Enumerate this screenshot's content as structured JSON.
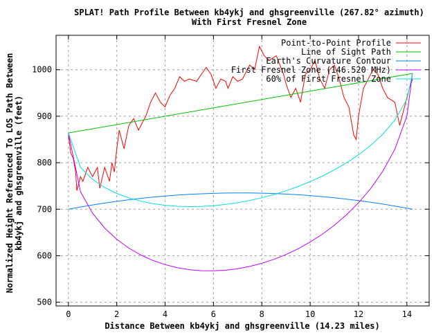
{
  "chart_data": {
    "type": "line",
    "title": "SPLAT! Path Profile Between kb4ykj and ghsgreenville (267.82° azimuth)",
    "subtitle": "With First Fresnel Zone",
    "xlabel": "Distance Between kb4ykj and ghsgreenville (14.23 miles)",
    "ylabel_lines": [
      "Normalized Height Referenced To LOS Path Between",
      "kb4ykj and ghsgreenville (feet)"
    ],
    "xlim": [
      -0.51,
      14.92
    ],
    "ylim": [
      492,
      1074
    ],
    "xticks": [
      0,
      2,
      4,
      6,
      8,
      10,
      12,
      14
    ],
    "xtick_labels": [
      "0",
      "2",
      "4",
      "6",
      "8",
      "10",
      "12",
      "14"
    ],
    "yticks": [
      500,
      600,
      700,
      800,
      900,
      1000
    ],
    "ytick_labels": [
      "500",
      "600",
      "700",
      "800",
      "900",
      "1000"
    ],
    "grid": true,
    "legend_position": "top-right",
    "series": [
      {
        "name": "Point-to-Point Profile",
        "color": "#ff0000",
        "x": [
          0,
          0.1,
          0.2,
          0.3,
          0.35,
          0.5,
          0.6,
          0.8,
          1.0,
          1.2,
          1.3,
          1.5,
          1.7,
          1.8,
          1.9,
          2.0,
          2.1,
          2.2,
          2.3,
          2.5,
          2.7,
          2.9,
          3.0,
          3.2,
          3.4,
          3.6,
          3.8,
          4.0,
          4.2,
          4.4,
          4.6,
          4.8,
          5.0,
          5.3,
          5.5,
          5.7,
          5.9,
          6.1,
          6.3,
          6.5,
          6.6,
          6.8,
          7.0,
          7.2,
          7.5,
          7.7,
          7.9,
          8.1,
          8.3,
          8.6,
          8.9,
          9.0,
          9.2,
          9.4,
          9.6,
          9.8,
          10.0,
          10.2,
          10.4,
          10.6,
          10.8,
          11.0,
          11.2,
          11.4,
          11.6,
          11.8,
          11.9,
          12.0,
          12.2,
          12.4,
          12.6,
          12.8,
          13.0,
          13.2,
          13.5,
          13.7,
          13.9,
          14.1,
          14.23
        ],
        "y": [
          860,
          820,
          810,
          780,
          740,
          770,
          760,
          790,
          770,
          790,
          745,
          790,
          760,
          800,
          780,
          830,
          870,
          850,
          830,
          880,
          895,
          870,
          880,
          900,
          930,
          950,
          930,
          920,
          945,
          960,
          985,
          975,
          980,
          975,
          990,
          1005,
          990,
          960,
          980,
          975,
          960,
          985,
          975,
          980,
          1010,
          1000,
          1050,
          1030,
          1020,
          1030,
          990,
          970,
          940,
          960,
          930,
          990,
          1000,
          1020,
          980,
          960,
          1000,
          1010,
          980,
          940,
          920,
          860,
          850,
          900,
          960,
          980,
          1000,
          990,
          960,
          940,
          930,
          880,
          920,
          960,
          980
        ]
      },
      {
        "name": "Line of Sight Path",
        "color": "#00c000",
        "x": [
          0,
          14.23
        ],
        "y": [
          864,
          992
        ]
      },
      {
        "name": "Earth's Curvature Contour",
        "color": "#0080ff",
        "x": [
          0,
          0.5,
          1,
          1.5,
          2,
          2.5,
          3,
          3.5,
          4,
          4.5,
          5,
          5.5,
          6,
          6.5,
          7,
          7.5,
          8,
          8.5,
          9,
          9.5,
          10,
          10.5,
          11,
          11.5,
          12,
          12.5,
          13,
          13.5,
          14,
          14.23
        ],
        "y": [
          700,
          704.7,
          709.1,
          713.2,
          716.9,
          720.3,
          723.3,
          726.0,
          728.3,
          730.3,
          731.9,
          733.2,
          734.1,
          734.7,
          735.0,
          734.9,
          734.5,
          733.7,
          732.5,
          731.1,
          729.2,
          727.1,
          724.6,
          721.7,
          718.5,
          715.0,
          711.1,
          706.8,
          702.2,
          700
        ]
      },
      {
        "name": "First Fresnel Zone (146.520 MHz)",
        "color": "#c000ff",
        "x": [
          0,
          0.5,
          1,
          1.5,
          2,
          2.5,
          3,
          3.5,
          4,
          4.5,
          5,
          5.5,
          6,
          6.5,
          7,
          7.5,
          8,
          8.5,
          9,
          9.5,
          10,
          10.5,
          11,
          11.5,
          12,
          12.5,
          13,
          13.5,
          14,
          14.23
        ],
        "y": [
          864,
          737.8,
          691.5,
          659.4,
          635.2,
          616.3,
          601.4,
          589.7,
          580.8,
          574.3,
          570.0,
          567.7,
          567.4,
          568.8,
          572.0,
          577.0,
          583.7,
          592.2,
          602.6,
          615.0,
          629.5,
          646.2,
          665.6,
          687.9,
          713.9,
          744.5,
          781.4,
          828.9,
          900.5,
          992
        ]
      },
      {
        "name": "60% of First Fresnel Zone",
        "color": "#00e0e0",
        "x": [
          0,
          0.5,
          1,
          1.5,
          2,
          2.5,
          3,
          3.5,
          4,
          4.5,
          5,
          5.5,
          6,
          6.5,
          7,
          7.5,
          8,
          8.5,
          9,
          9.5,
          10,
          10.5,
          11,
          11.5,
          12,
          12.5,
          13,
          13.5,
          14,
          14.23
        ],
        "y": [
          864,
          790.1,
          764.1,
          746.6,
          733.9,
          724.4,
          717.2,
          712.0,
          708.5,
          706.4,
          705.6,
          706.0,
          707.6,
          710.3,
          714.0,
          718.8,
          724.6,
          731.5,
          739.6,
          748.8,
          759.3,
          771.1,
          784.6,
          799.7,
          817.1,
          837.3,
          861.2,
          891.5,
          936.3,
          992
        ]
      }
    ]
  }
}
